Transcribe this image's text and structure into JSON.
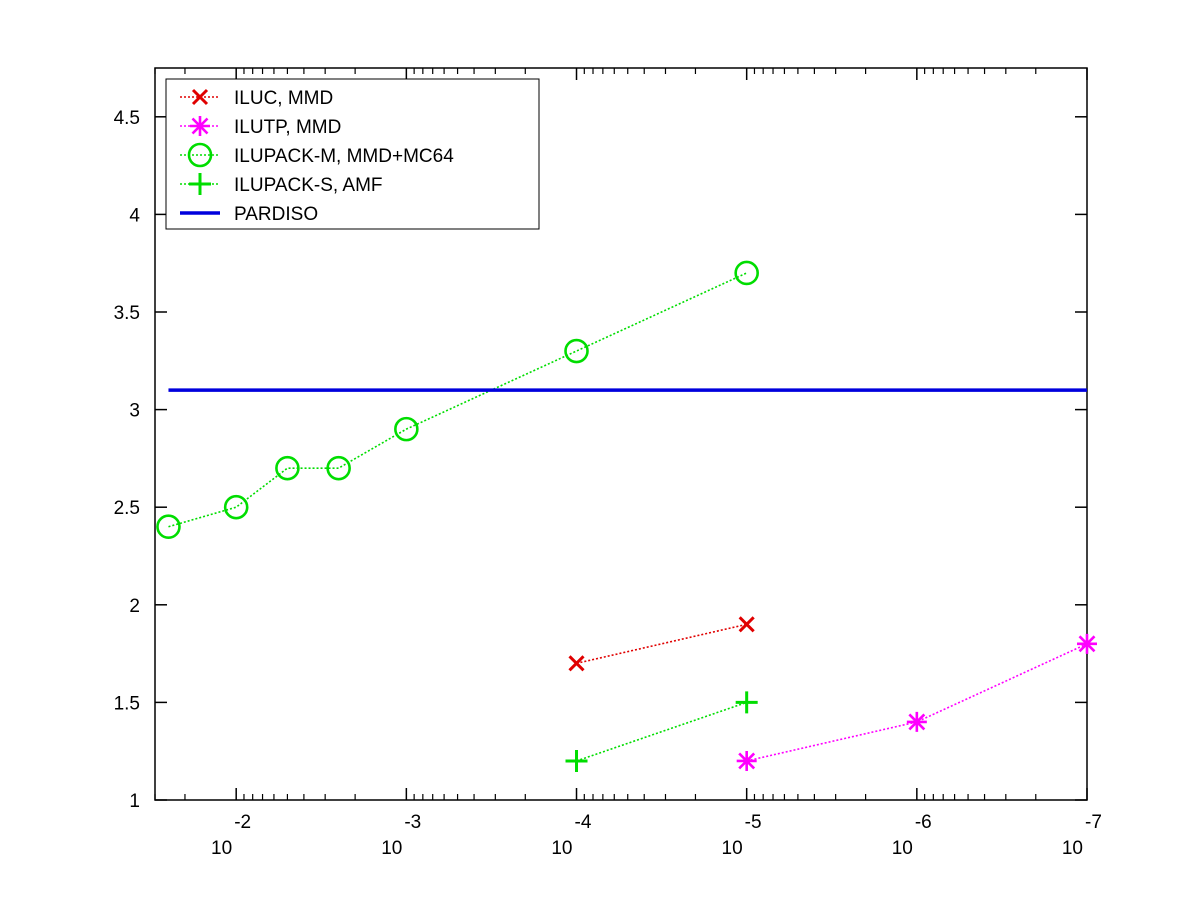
{
  "chart_data": {
    "type": "line",
    "xscale": "log",
    "x_direction": "decreasing",
    "xlim": [
      0.03,
      1e-07
    ],
    "ylim": [
      1,
      4.75
    ],
    "grid": false,
    "legend_position": "top-left",
    "x_ticks": [
      {
        "value": 0.01,
        "base": "10",
        "exp": "-2"
      },
      {
        "value": 0.001,
        "base": "10",
        "exp": "-3"
      },
      {
        "value": 0.0001,
        "base": "10",
        "exp": "-4"
      },
      {
        "value": 1e-05,
        "base": "10",
        "exp": "-5"
      },
      {
        "value": 1e-06,
        "base": "10",
        "exp": "-6"
      },
      {
        "value": 1e-07,
        "base": "10",
        "exp": "-7"
      }
    ],
    "y_ticks": [
      {
        "value": 1,
        "label": "1"
      },
      {
        "value": 1.5,
        "label": "1.5"
      },
      {
        "value": 2,
        "label": "2"
      },
      {
        "value": 2.5,
        "label": "2.5"
      },
      {
        "value": 3,
        "label": "3"
      },
      {
        "value": 3.5,
        "label": "3.5"
      },
      {
        "value": 4,
        "label": "4"
      },
      {
        "value": 4.5,
        "label": "4.5"
      }
    ],
    "series": [
      {
        "name": "ILUC, MMD",
        "color": "#e00000",
        "marker": "x",
        "line": "dotted",
        "x": [
          0.0001,
          1e-05
        ],
        "y": [
          1.7,
          1.9
        ]
      },
      {
        "name": "ILUTP, MMD",
        "color": "#ff00ff",
        "marker": "asterisk",
        "line": "dotted",
        "x": [
          1e-05,
          1e-06,
          1e-07
        ],
        "y": [
          1.2,
          1.4,
          1.8
        ]
      },
      {
        "name": "ILUPACK-M, MMD+MC64",
        "color": "#00dd00",
        "marker": "circle",
        "line": "dotted",
        "x": [
          0.025,
          0.01,
          0.005,
          0.0025,
          0.001,
          0.0001,
          1e-05
        ],
        "y": [
          2.4,
          2.5,
          2.7,
          2.7,
          2.9,
          3.3,
          3.7
        ]
      },
      {
        "name": "ILUPACK-S, AMF",
        "color": "#00dd00",
        "marker": "plus",
        "line": "dotted",
        "x": [
          0.0001,
          1e-05
        ],
        "y": [
          1.2,
          1.5
        ]
      },
      {
        "name": "PARDISO",
        "color": "#0000dd",
        "marker": "none",
        "line": "solid",
        "x": [
          0.025,
          1e-07
        ],
        "y": [
          3.1,
          3.1
        ]
      }
    ]
  }
}
